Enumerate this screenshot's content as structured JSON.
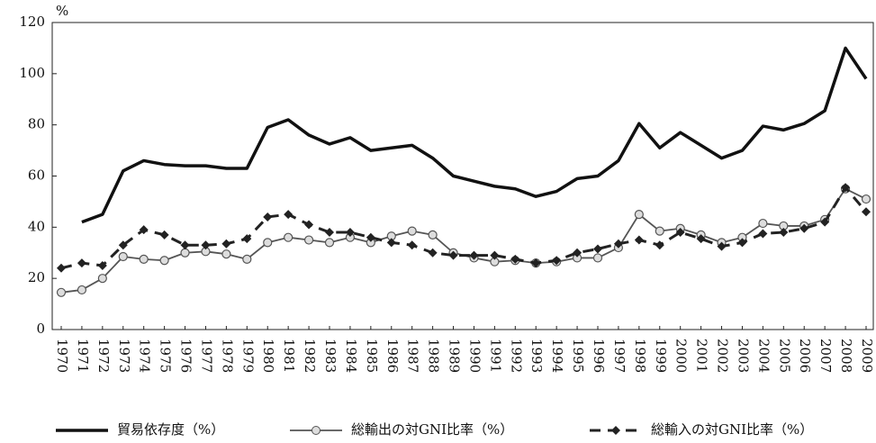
{
  "chart_data": {
    "type": "line",
    "ylabel": "%",
    "x": [
      "1970",
      "1971",
      "1972",
      "1973",
      "1974",
      "1975",
      "1976",
      "1977",
      "1978",
      "1979",
      "1980",
      "1981",
      "1982",
      "1983",
      "1984",
      "1985",
      "1986",
      "1987",
      "1988",
      "1989",
      "1990",
      "1991",
      "1992",
      "1993",
      "1994",
      "1995",
      "1996",
      "1997",
      "1998",
      "1999",
      "2000",
      "2001",
      "2002",
      "2003",
      "2004",
      "2005",
      "2006",
      "2007",
      "2008",
      "2009"
    ],
    "series": [
      {
        "name": "貿易依存度（%）",
        "color": "#111111",
        "style": "solid",
        "marker": "none",
        "values": [
          null,
          42,
          45,
          62,
          66,
          64.5,
          64,
          64,
          63,
          63,
          79,
          82,
          76,
          72.5,
          75,
          70,
          71,
          72,
          67,
          60,
          58,
          56,
          55,
          52,
          54,
          59,
          60,
          66,
          80.5,
          71,
          77,
          72,
          67,
          70,
          79.5,
          78,
          80.5,
          85.5,
          110,
          98
        ]
      },
      {
        "name": "総輸出の対GNI比率（%）",
        "color": "#555555",
        "style": "solid",
        "marker": "circle",
        "values": [
          14.5,
          15.5,
          20,
          28.5,
          27.5,
          27,
          30,
          30.5,
          29.5,
          27.5,
          34,
          36,
          35,
          34,
          36,
          34,
          36.5,
          38.5,
          37,
          30,
          28,
          26.5,
          27,
          26,
          26.5,
          28,
          28,
          32,
          45,
          38.5,
          39.5,
          37,
          34,
          36,
          41.5,
          40.5,
          40.5,
          43,
          55,
          51
        ]
      },
      {
        "name": "総輸入の対GNI比率（%）",
        "color": "#222222",
        "style": "dashed",
        "marker": "diamond",
        "values": [
          24,
          26,
          25,
          33,
          39,
          37,
          33,
          33,
          33.5,
          35.5,
          44,
          45,
          41,
          38,
          38,
          36,
          34,
          33,
          30,
          29,
          29,
          29,
          27.5,
          26,
          27,
          30,
          31.5,
          33.5,
          35,
          33,
          38,
          35.5,
          32.5,
          34,
          37.5,
          38,
          39.5,
          42,
          55.5,
          46
        ]
      }
    ],
    "ylim": [
      0,
      120
    ],
    "yticks": [
      0,
      20,
      40,
      60,
      80,
      100,
      120
    ],
    "grid": false,
    "legend": "bottom"
  }
}
